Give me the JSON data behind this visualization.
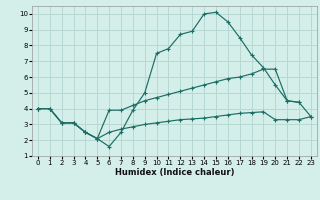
{
  "xlabel": "Humidex (Indice chaleur)",
  "background_color": "#d4eeea",
  "grid_color": "#b8d8d4",
  "line_color": "#1a6e64",
  "xlim": [
    -0.5,
    23.5
  ],
  "ylim": [
    1,
    10.5
  ],
  "xticks": [
    0,
    1,
    2,
    3,
    4,
    5,
    6,
    7,
    8,
    9,
    10,
    11,
    12,
    13,
    14,
    15,
    16,
    17,
    18,
    19,
    20,
    21,
    22,
    23
  ],
  "yticks": [
    1,
    2,
    3,
    4,
    5,
    6,
    7,
    8,
    9,
    10
  ],
  "curve1_x": [
    0,
    1,
    2,
    3,
    4,
    5,
    6,
    7,
    8,
    9,
    10,
    11,
    12,
    13,
    14,
    15,
    16,
    17,
    18,
    19,
    20,
    21,
    22
  ],
  "curve1_y": [
    4.0,
    4.0,
    3.1,
    3.1,
    2.5,
    2.1,
    1.6,
    2.5,
    3.9,
    5.0,
    7.5,
    7.8,
    8.7,
    8.9,
    10.0,
    10.1,
    9.5,
    8.5,
    7.4,
    6.6,
    5.5,
    4.5,
    4.4
  ],
  "curve2_x": [
    0,
    1,
    2,
    3,
    4,
    5,
    6,
    7,
    8,
    9,
    10,
    11,
    12,
    13,
    14,
    15,
    16,
    17,
    18,
    19,
    20,
    21,
    22,
    23
  ],
  "curve2_y": [
    4.0,
    4.0,
    3.1,
    3.1,
    2.5,
    2.1,
    3.9,
    3.9,
    4.2,
    4.5,
    4.7,
    4.9,
    5.1,
    5.3,
    5.5,
    5.7,
    5.9,
    6.0,
    6.2,
    6.5,
    6.5,
    4.5,
    4.4,
    3.5
  ],
  "curve3_x": [
    0,
    1,
    2,
    3,
    4,
    5,
    6,
    7,
    8,
    9,
    10,
    11,
    12,
    13,
    14,
    15,
    16,
    17,
    18,
    19,
    20,
    21,
    22,
    23
  ],
  "curve3_y": [
    4.0,
    4.0,
    3.1,
    3.1,
    2.5,
    2.1,
    2.5,
    2.7,
    2.85,
    3.0,
    3.1,
    3.2,
    3.3,
    3.35,
    3.4,
    3.5,
    3.6,
    3.7,
    3.75,
    3.8,
    3.3,
    3.3,
    3.3,
    3.5
  ]
}
